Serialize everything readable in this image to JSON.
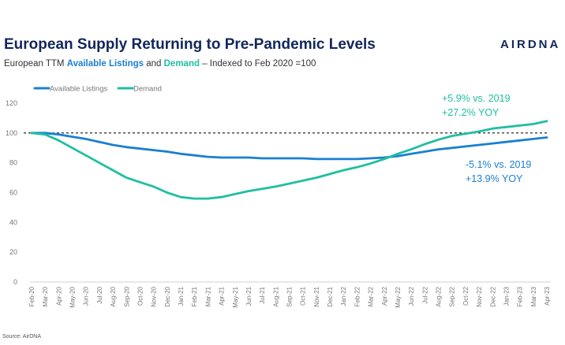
{
  "header": {
    "title": "European Supply Returning to Pre-Pandemic Levels",
    "subtitle_prefix": "European TTM ",
    "subtitle_series1": "Available Listings",
    "subtitle_and": " and ",
    "subtitle_series2": "Demand",
    "subtitle_suffix": " – Indexed to Feb 2020 =100",
    "logo": "AIRDNA"
  },
  "footer": {
    "source": "Source: AirDNA"
  },
  "colors": {
    "listings": "#1a7fd2",
    "demand": "#1fbfa0",
    "title": "#12265a"
  },
  "chart_data": {
    "type": "line",
    "title": "European Supply Returning to Pre-Pandemic Levels",
    "ylim": [
      0,
      120
    ],
    "yticks": [
      "0",
      "20",
      "40",
      "60",
      "80",
      "100",
      "120"
    ],
    "grid": false,
    "legend_position": "top-left",
    "reference_line": {
      "y": 100,
      "style": "dashed"
    },
    "categories": [
      "Feb-20",
      "Mar-20",
      "Apr-20",
      "May-20",
      "Jun-20",
      "Jul-20",
      "Aug-20",
      "Sep-20",
      "Oct-20",
      "Nov-20",
      "Dec-20",
      "Jan-21",
      "Feb-21",
      "Mar-21",
      "Apr-21",
      "May-21",
      "Jun-21",
      "Jul-21",
      "Aug-21",
      "Sep-21",
      "Oct-21",
      "Nov-21",
      "Dec-21",
      "Jan-22",
      "Feb-22",
      "Mar-22",
      "Apr-22",
      "May-22",
      "Jun-22",
      "Jul-22",
      "Aug-22",
      "Sep-22",
      "Oct-22",
      "Nov-22",
      "Dec-22",
      "Jan-23",
      "Feb-23",
      "Mar-23",
      "Apr-23"
    ],
    "series": [
      {
        "name": "Available Listings",
        "values": [
          100,
          100,
          99,
          97.5,
          96,
          94,
          92,
          90.5,
          89.5,
          88.5,
          87.5,
          86,
          85,
          84,
          83.5,
          83.5,
          83.5,
          83,
          83,
          83,
          83,
          82.5,
          82.5,
          82.5,
          82.5,
          83,
          83.5,
          84.5,
          86,
          87.5,
          89,
          90,
          91,
          92,
          93,
          94,
          95,
          96,
          97
        ]
      },
      {
        "name": "Demand",
        "values": [
          100,
          99,
          95,
          90,
          85,
          80,
          75,
          70,
          67,
          64,
          60,
          57,
          56,
          56,
          57,
          59,
          61,
          62.5,
          64,
          66,
          68,
          70,
          72.5,
          75,
          77,
          79.5,
          82.5,
          86,
          89,
          92.5,
          95.5,
          98,
          99.5,
          101,
          103,
          104,
          105,
          106,
          108
        ]
      }
    ],
    "annotations": [
      {
        "text": "+5.9% vs. 2019",
        "series": "Demand"
      },
      {
        "text": "+27.2% YOY",
        "series": "Demand"
      },
      {
        "text": "-5.1% vs. 2019",
        "series": "Available Listings"
      },
      {
        "text": "+13.9% YOY",
        "series": "Available Listings"
      }
    ],
    "source": "Source: AirDNA"
  }
}
